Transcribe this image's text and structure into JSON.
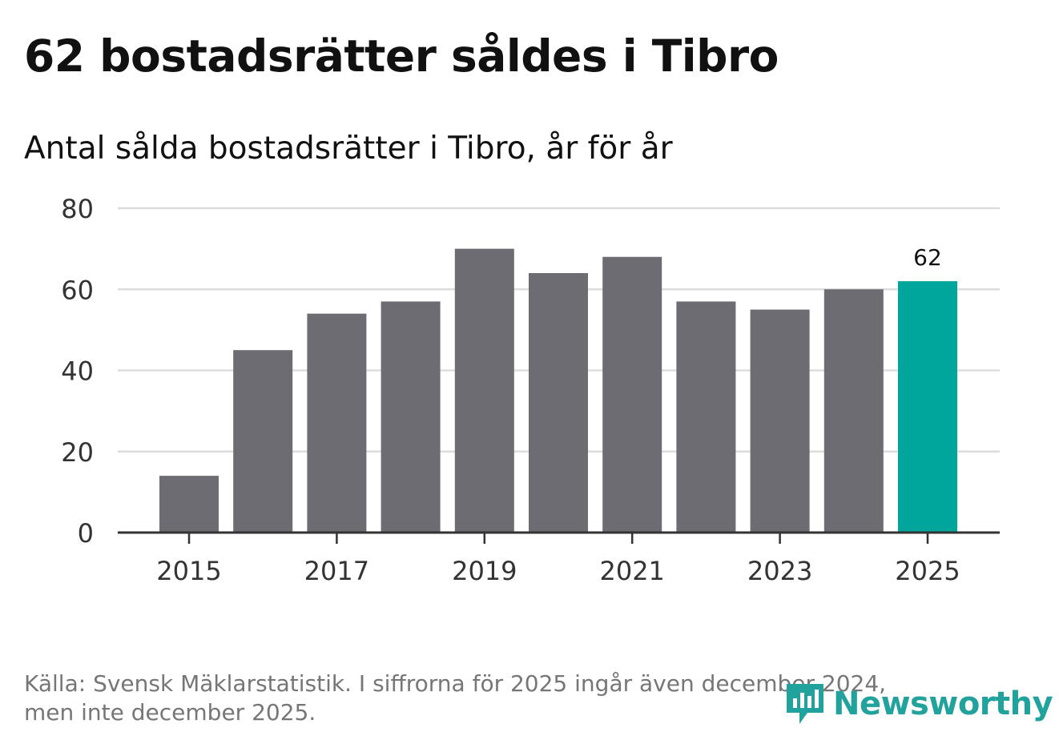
{
  "title": "62 bostadsrätter såldes i Tibro",
  "subtitle": "Antal sålda bostadsrätter i Tibro, år för år",
  "footer": {
    "line1": "Källa: Svensk Mäklarstatistik. I siffrorna för 2025 ingår även december 2024,",
    "line2": "men inte december 2025."
  },
  "logo": {
    "text": "Newsworthy",
    "icon": "bar-chart-bubble-icon"
  },
  "colors": {
    "bar": "#6d6c73",
    "highlight": "#00a59b",
    "grid": "#dddddd",
    "axis": "#333333",
    "logo": "#22a29c"
  },
  "chart_data": {
    "type": "bar",
    "title": "62 bostadsrätter såldes i Tibro",
    "subtitle": "Antal sålda bostadsrätter i Tibro, år för år",
    "xlabel": "",
    "ylabel": "",
    "categories": [
      "2015",
      "2016",
      "2017",
      "2018",
      "2019",
      "2020",
      "2021",
      "2022",
      "2023",
      "2024",
      "2025"
    ],
    "values": [
      14,
      45,
      54,
      57,
      70,
      64,
      68,
      57,
      55,
      60,
      62
    ],
    "highlight_category": "2025",
    "data_labels": [
      {
        "category": "2025",
        "label": "62"
      }
    ],
    "x_tick_labels": [
      "2015",
      "2017",
      "2019",
      "2021",
      "2023",
      "2025"
    ],
    "y_ticks": [
      0,
      20,
      40,
      60,
      80
    ],
    "ylim": [
      0,
      80
    ],
    "grid": true
  }
}
